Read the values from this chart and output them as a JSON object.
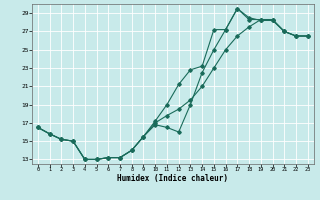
{
  "xlabel": "Humidex (Indice chaleur)",
  "ylabel": "",
  "bg_color": "#c8eaea",
  "grid_color": "#ffffff",
  "line_color": "#1a6b5a",
  "xlim": [
    -0.5,
    23.5
  ],
  "ylim": [
    12.5,
    30.0
  ],
  "yticks": [
    13,
    15,
    17,
    19,
    21,
    23,
    25,
    27,
    29
  ],
  "xticks": [
    0,
    1,
    2,
    3,
    4,
    5,
    6,
    7,
    8,
    9,
    10,
    11,
    12,
    13,
    14,
    15,
    16,
    17,
    18,
    19,
    20,
    21,
    22,
    23
  ],
  "line1_x": [
    0,
    1,
    2,
    3,
    4,
    5,
    6,
    7,
    8,
    9,
    10,
    11,
    12,
    13,
    14,
    15,
    16,
    17,
    18,
    19,
    20,
    21,
    22,
    23
  ],
  "line1_y": [
    16.5,
    15.8,
    15.2,
    15.0,
    13.0,
    13.0,
    13.2,
    13.2,
    14.0,
    15.5,
    16.8,
    16.5,
    16.0,
    19.0,
    22.5,
    25.0,
    27.2,
    29.5,
    28.5,
    28.2,
    28.2,
    27.0,
    26.5,
    26.5
  ],
  "line2_x": [
    0,
    1,
    2,
    3,
    4,
    5,
    6,
    7,
    8,
    9,
    10,
    11,
    12,
    13,
    14,
    15,
    16,
    17,
    18,
    19,
    20,
    21,
    22,
    23
  ],
  "line2_y": [
    16.5,
    15.8,
    15.2,
    15.0,
    13.0,
    13.0,
    13.2,
    13.2,
    14.0,
    15.5,
    17.2,
    19.0,
    21.2,
    22.8,
    23.2,
    27.2,
    27.2,
    29.5,
    28.3,
    28.3,
    28.3,
    27.0,
    26.5,
    26.5
  ],
  "line3_x": [
    0,
    1,
    2,
    3,
    4,
    5,
    6,
    7,
    8,
    9,
    10,
    11,
    12,
    13,
    14,
    15,
    16,
    17,
    18,
    19,
    20,
    21,
    22,
    23
  ],
  "line3_y": [
    16.5,
    15.8,
    15.2,
    15.0,
    13.0,
    13.0,
    13.2,
    13.2,
    14.0,
    15.5,
    17.0,
    17.8,
    18.5,
    19.5,
    21.0,
    23.0,
    25.0,
    26.5,
    27.5,
    28.3,
    28.3,
    27.0,
    26.5,
    26.5
  ]
}
